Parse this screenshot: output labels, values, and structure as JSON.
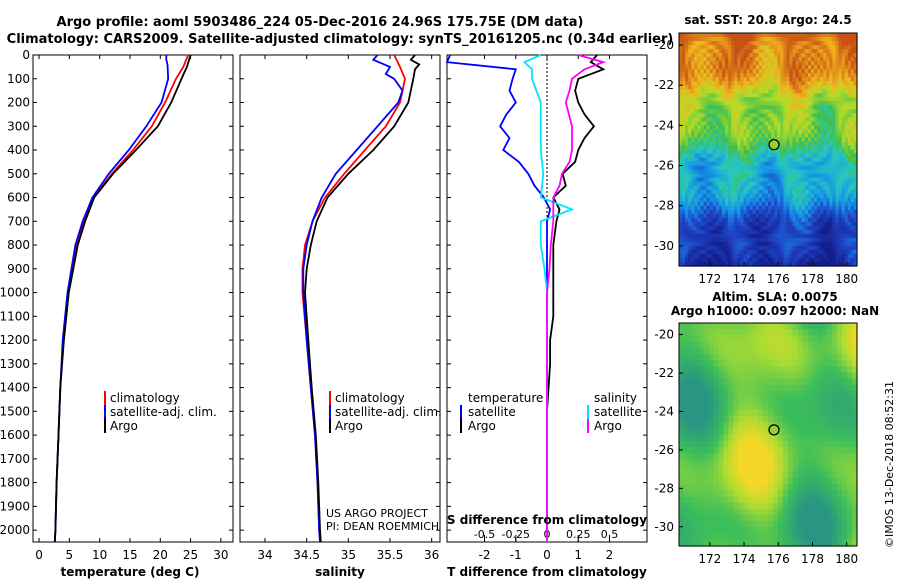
{
  "header": {
    "line1": "Argo profile: aoml 5903486_224 05-Dec-2016 24.96S 175.75E (DM data)",
    "line2": "Climatology: CARS2009. Satellite-adjusted climatology: synTS_20161205.nc (0.34d earlier)"
  },
  "depth_axis": {
    "ticks": [
      0,
      100,
      200,
      300,
      400,
      500,
      600,
      700,
      800,
      900,
      1000,
      1100,
      1200,
      1300,
      1400,
      1500,
      1600,
      1700,
      1800,
      1900,
      2000
    ],
    "range": [
      0,
      2050
    ]
  },
  "colors": {
    "climatology": "#ff0000",
    "satellite": "#0000ff",
    "argo": "#000000",
    "satellite_salinity": "#00e5ff",
    "argo_salinity": "#ff00ff"
  },
  "chart_data": [
    {
      "type": "line",
      "id": "temperature",
      "xlabel": "temperature (deg C)",
      "xlim": [
        -1,
        32
      ],
      "xticks": [
        0,
        5,
        10,
        15,
        20,
        25,
        30
      ],
      "legend": [
        "climatology",
        "satellite-adj. clim.",
        "Argo"
      ],
      "series": [
        {
          "name": "climatology",
          "depth": [
            0,
            50,
            100,
            200,
            300,
            400,
            500,
            600,
            700,
            800,
            1000,
            1200,
            1400,
            1600,
            1800,
            2000,
            2050
          ],
          "values": [
            24.6,
            23.8,
            22.6,
            20.8,
            18.6,
            15.5,
            12.0,
            9.0,
            7.3,
            6.2,
            4.8,
            4.0,
            3.5,
            3.2,
            2.9,
            2.7,
            2.6
          ]
        },
        {
          "name": "satellite-adj. clim.",
          "depth": [
            0,
            20,
            40,
            100,
            200,
            300,
            400,
            500,
            600,
            700,
            800,
            1000,
            1200,
            1400,
            1600,
            1800,
            2000,
            2050
          ],
          "values": [
            21.0,
            21.0,
            21.2,
            21.3,
            20.2,
            17.7,
            14.8,
            11.5,
            8.8,
            7.2,
            6.0,
            4.7,
            3.9,
            3.5,
            3.2,
            2.9,
            2.7,
            2.6
          ]
        },
        {
          "name": "Argo",
          "depth": [
            0,
            50,
            100,
            200,
            300,
            400,
            500,
            600,
            700,
            800,
            1000,
            1200,
            1400,
            1600,
            1800,
            2000,
            2050
          ],
          "values": [
            25.0,
            24.4,
            23.5,
            21.8,
            19.6,
            16.0,
            12.2,
            9.1,
            7.6,
            6.4,
            4.9,
            4.1,
            3.5,
            3.2,
            2.9,
            2.7,
            2.6
          ]
        }
      ]
    },
    {
      "type": "line",
      "id": "salinity",
      "xlabel": "salinity",
      "xlim": [
        33.7,
        36.1
      ],
      "xticks": [
        34,
        34.5,
        35,
        35.5,
        36
      ],
      "legend": [
        "climatology",
        "satellite-adj. clim.",
        "Argo"
      ],
      "footnote": [
        "US ARGO PROJECT",
        "PI: DEAN ROEMMICH"
      ],
      "series": [
        {
          "name": "climatology",
          "depth": [
            0,
            50,
            100,
            200,
            300,
            400,
            500,
            600,
            700,
            800,
            900,
            1000,
            1200,
            1400,
            1600,
            1800,
            2000,
            2050
          ],
          "values": [
            35.55,
            35.62,
            35.68,
            35.62,
            35.45,
            35.2,
            34.95,
            34.72,
            34.57,
            34.48,
            34.45,
            34.45,
            34.5,
            34.55,
            34.6,
            34.63,
            34.65,
            34.66
          ]
        },
        {
          "name": "satellite-adj. clim.",
          "depth": [
            0,
            20,
            50,
            80,
            100,
            150,
            200,
            300,
            400,
            500,
            600,
            700,
            800,
            900,
            1000,
            1200,
            1400,
            1600,
            1800,
            2000,
            2050
          ],
          "values": [
            35.35,
            35.3,
            35.5,
            35.45,
            35.55,
            35.65,
            35.6,
            35.35,
            35.1,
            34.85,
            34.68,
            34.57,
            34.5,
            34.46,
            34.46,
            34.5,
            34.55,
            34.6,
            34.63,
            34.65,
            34.66
          ]
        },
        {
          "name": "Argo",
          "depth": [
            0,
            20,
            40,
            60,
            100,
            150,
            200,
            300,
            400,
            500,
            600,
            700,
            800,
            900,
            1000,
            1200,
            1400,
            1600,
            1800,
            2000,
            2050
          ],
          "values": [
            35.8,
            35.75,
            35.85,
            35.8,
            35.78,
            35.75,
            35.72,
            35.55,
            35.3,
            35.0,
            34.75,
            34.62,
            34.55,
            34.5,
            34.48,
            34.52,
            34.56,
            34.61,
            34.64,
            34.66,
            34.67
          ]
        }
      ]
    },
    {
      "type": "line",
      "id": "difference",
      "xlabel": "T difference from climatology",
      "xlabel2": "S difference from climatology",
      "xlim": [
        -3.2,
        3.2
      ],
      "xticks": [
        -2,
        -1,
        0,
        1,
        2
      ],
      "xticks2": [
        -0.5,
        -0.25,
        0,
        0.25,
        0.5
      ],
      "xtick2_labels": [
        "-0.5",
        "-0.25",
        "0",
        "0.25",
        "0.5"
      ],
      "legend_left": {
        "title": "temperature",
        "items": [
          "satellite",
          "Argo"
        ]
      },
      "legend_right": {
        "title": "salinity",
        "items": [
          "satellite",
          "Argo"
        ]
      },
      "series": [
        {
          "name": "satellite",
          "quantity": "temperature",
          "depth": [
            0,
            30,
            60,
            100,
            150,
            200,
            250,
            300,
            350,
            400,
            450,
            500,
            550,
            600,
            650,
            700,
            800,
            900,
            1000,
            1100,
            1200,
            1300,
            1500,
            1700,
            1900,
            2050
          ],
          "values": [
            -3.1,
            -3.2,
            -1.0,
            -1.1,
            -1.2,
            -1.0,
            -1.3,
            -1.5,
            -1.2,
            -1.4,
            -0.9,
            -0.6,
            -0.4,
            -0.1,
            0.1,
            0.0,
            0.0,
            0.0,
            0.0,
            0.0,
            0.0,
            0.0,
            0.0,
            0.0,
            0.0,
            0.0
          ]
        },
        {
          "name": "Argo",
          "quantity": "temperature",
          "depth": [
            0,
            30,
            60,
            100,
            150,
            200,
            250,
            300,
            350,
            400,
            450,
            500,
            550,
            600,
            650,
            700,
            800,
            900,
            1000,
            1100,
            1200,
            1300,
            1500,
            1700,
            1900,
            2050
          ],
          "values": [
            1.6,
            1.4,
            1.8,
            1.0,
            0.9,
            1.0,
            1.2,
            1.5,
            1.2,
            1.0,
            0.9,
            0.5,
            0.6,
            0.2,
            0.4,
            0.3,
            0.2,
            0.2,
            0.2,
            0.2,
            0.1,
            0.1,
            0.0,
            0.0,
            0.0,
            0.0
          ]
        },
        {
          "name": "satellite",
          "quantity": "salinity",
          "depth": [
            0,
            30,
            60,
            100,
            200,
            300,
            400,
            500,
            600,
            650,
            700,
            800,
            900,
            1000,
            1100,
            1200,
            1400,
            1600,
            1800,
            2050
          ],
          "values": [
            -0.05,
            -0.18,
            -0.12,
            -0.12,
            -0.05,
            -0.05,
            -0.05,
            -0.03,
            -0.05,
            0.2,
            -0.05,
            -0.05,
            -0.02,
            0.0,
            0.0,
            0.0,
            0.0,
            0.0,
            0.0,
            0.0
          ]
        },
        {
          "name": "Argo",
          "quantity": "salinity",
          "depth": [
            0,
            30,
            60,
            100,
            150,
            200,
            300,
            400,
            450,
            500,
            550,
            600,
            700,
            800,
            900,
            1000,
            1100,
            1200,
            1400,
            1600,
            1800,
            2050
          ],
          "values": [
            0.25,
            0.45,
            0.3,
            0.2,
            0.18,
            0.15,
            0.2,
            0.2,
            0.18,
            0.12,
            0.1,
            0.05,
            0.05,
            0.03,
            0.02,
            0.0,
            0.0,
            0.0,
            0.0,
            0.0,
            0.0,
            0.0
          ]
        }
      ]
    },
    {
      "type": "heatmap",
      "id": "sst-map",
      "title": "sat. SST: 20.8 Argo: 24.5",
      "xlim": [
        170.2,
        180.6
      ],
      "ylim": [
        -31,
        -19.4
      ],
      "xticks": [
        172,
        174,
        176,
        178,
        180
      ],
      "yticks": [
        -20,
        -22,
        -24,
        -26,
        -28,
        -30
      ],
      "marker": {
        "lon": 175.75,
        "lat": -24.96
      }
    },
    {
      "type": "heatmap",
      "id": "sla-map",
      "title": "Altim. SLA: 0.0075",
      "title2": "Argo h1000: 0.097 h2000: NaN",
      "xlim": [
        170.2,
        180.6
      ],
      "ylim": [
        -31,
        -19.4
      ],
      "xticks": [
        172,
        174,
        176,
        178,
        180
      ],
      "yticks": [
        -20,
        -22,
        -24,
        -26,
        -28,
        -30
      ],
      "marker": {
        "lon": 175.75,
        "lat": -24.96
      }
    }
  ],
  "credit": "©IMOS 13-Dec-2018 08:52:31"
}
